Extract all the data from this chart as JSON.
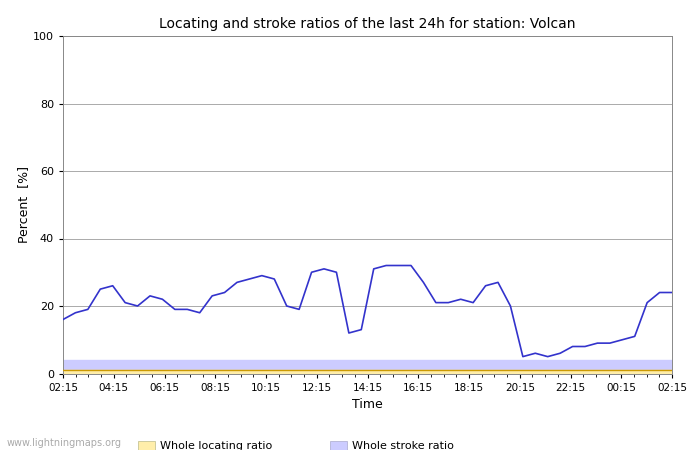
{
  "title": "Locating and stroke ratios of the last 24h for station: Volcan",
  "xlabel": "Time",
  "ylabel": "Percent  [%]",
  "xlim": [
    0,
    24
  ],
  "ylim": [
    0,
    100
  ],
  "yticks": [
    0,
    20,
    40,
    60,
    80,
    100
  ],
  "xtick_labels": [
    "02:15",
    "04:15",
    "06:15",
    "08:15",
    "10:15",
    "12:15",
    "14:15",
    "16:15",
    "18:15",
    "20:15",
    "22:15",
    "00:15",
    "02:15"
  ],
  "watermark": "www.lightningmaps.org",
  "stroke_ratio_volcan": [
    16,
    18,
    19,
    25,
    26,
    21,
    20,
    23,
    22,
    19,
    19,
    18,
    23,
    24,
    27,
    28,
    29,
    28,
    20,
    19,
    30,
    31,
    30,
    12,
    13,
    31,
    32,
    32,
    32,
    27,
    21,
    21,
    22,
    21,
    26,
    27,
    20,
    5,
    6,
    5,
    6,
    8,
    8,
    9,
    9,
    10,
    11,
    21,
    24,
    24
  ],
  "locating_ratio_volcan": [
    1,
    1,
    1,
    1,
    1,
    1,
    1,
    1,
    1,
    1,
    1,
    1,
    1,
    1,
    1,
    1,
    1,
    1,
    1,
    1,
    1,
    1,
    1,
    1,
    1,
    1,
    1,
    1,
    1,
    1,
    1,
    1,
    1,
    1,
    1,
    1,
    1,
    1,
    1,
    1,
    1,
    1,
    1,
    1,
    1,
    1,
    1,
    1,
    1,
    1
  ],
  "whole_stroke_ratio": [
    4,
    4,
    4,
    4,
    4,
    4,
    4,
    4,
    4,
    4,
    4,
    4,
    4,
    4,
    4,
    4,
    4,
    4,
    4,
    4,
    4,
    4,
    4,
    4,
    4,
    4,
    4,
    4,
    4,
    4,
    4,
    4,
    4,
    4,
    4,
    4,
    4,
    4,
    4,
    4,
    4,
    4,
    4,
    4,
    4,
    4,
    4,
    4,
    4,
    4
  ],
  "whole_locating_ratio": [
    1,
    1,
    1,
    1,
    1,
    1,
    1,
    1,
    1,
    1,
    1,
    1,
    1,
    1,
    1,
    1,
    1,
    1,
    1,
    1,
    1,
    1,
    1,
    1,
    1,
    1,
    1,
    1,
    1,
    1,
    1,
    1,
    1,
    1,
    1,
    1,
    1,
    1,
    1,
    1,
    1,
    1,
    1,
    1,
    1,
    1,
    1,
    1,
    1,
    1
  ],
  "stroke_color": "#3333cc",
  "locating_color": "#cc9900",
  "whole_stroke_fill": "#ccccff",
  "whole_locating_fill": "#ffeeaa",
  "background_color": "#ffffff",
  "grid_color": "#aaaaaa",
  "fig_width": 7.0,
  "fig_height": 4.5,
  "dpi": 100
}
